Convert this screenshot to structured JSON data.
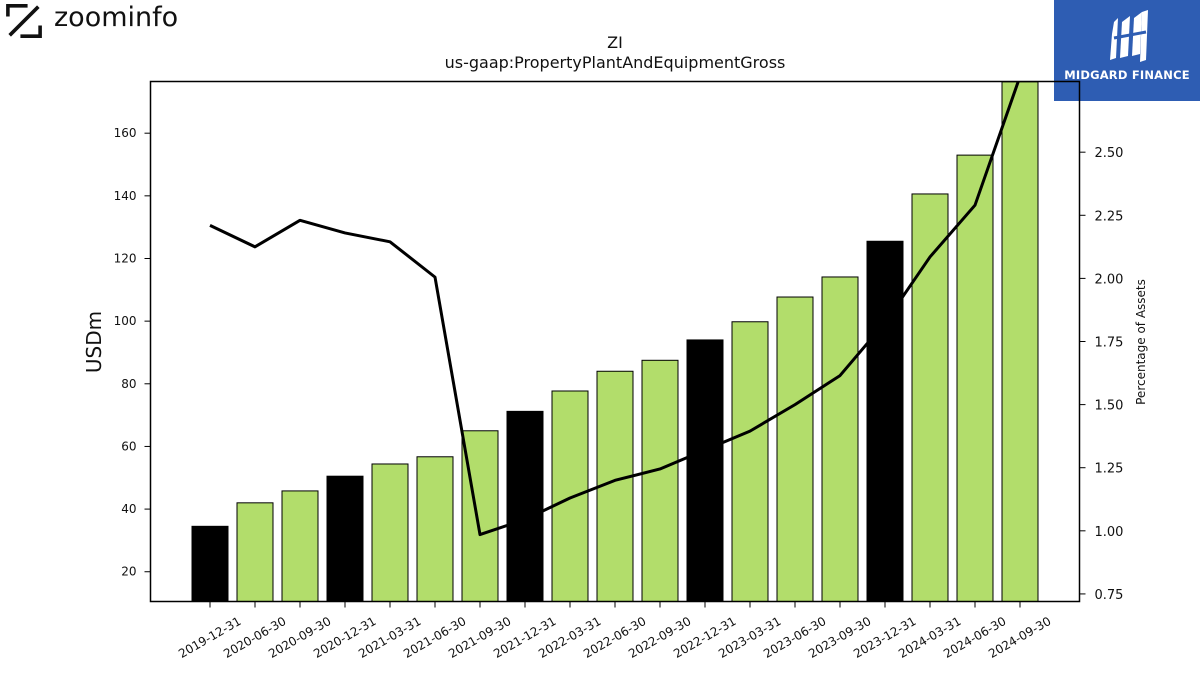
{
  "brand": {
    "name": "zoominfo",
    "logo_icon": "zoominfo-z-icon"
  },
  "badge": {
    "name": "MIDGARD FINANCE",
    "icon": "midgard-logo-icon",
    "color": "#2e5db3"
  },
  "chart_data": {
    "type": "bar",
    "title": "ZI",
    "subtitle": "us-gaap:PropertyPlantAndEquipmentGross",
    "ylabel": "USDm",
    "y2label": "Percentage of Assets",
    "ylim": [
      10.5,
      176.5
    ],
    "y2lim": [
      0.72,
      2.78
    ],
    "yticks": [
      20,
      40,
      60,
      80,
      100,
      120,
      140,
      160
    ],
    "y2ticks": [
      "0.75",
      "1.00",
      "1.25",
      "1.50",
      "1.75",
      "2.00",
      "2.25",
      "2.50"
    ],
    "categories": [
      "2019-12-31",
      "2020-06-30",
      "2020-09-30",
      "2020-12-31",
      "2021-03-31",
      "2021-06-30",
      "2021-09-30",
      "2021-12-31",
      "2022-03-31",
      "2022-06-30",
      "2022-09-30",
      "2022-12-31",
      "2023-03-31",
      "2023-06-30",
      "2023-09-30",
      "2023-12-31",
      "2024-03-31",
      "2024-06-30",
      "2024-09-30"
    ],
    "series": [
      {
        "values": [
          34.5,
          42.0,
          45.8,
          50.5,
          54.4,
          56.7,
          65.0,
          71.2,
          77.7,
          84.0,
          87.5,
          94.0,
          99.8,
          107.7,
          114.1,
          125.5,
          140.6,
          153.0,
          176.4
        ]
      },
      {
        "axis": "right",
        "values": [
          2.21,
          2.125,
          2.23,
          2.18,
          2.145,
          2.005,
          0.985,
          1.045,
          1.13,
          1.2,
          1.245,
          1.32,
          1.395,
          1.5,
          1.615,
          1.825,
          2.085,
          2.29,
          2.8
        ]
      }
    ],
    "bar_colors": [
      "#000000",
      "#b2dd6b",
      "#b2dd6b",
      "#000000",
      "#b2dd6b",
      "#b2dd6b",
      "#b2dd6b",
      "#000000",
      "#b2dd6b",
      "#b2dd6b",
      "#b2dd6b",
      "#000000",
      "#b2dd6b",
      "#b2dd6b",
      "#b2dd6b",
      "#000000",
      "#b2dd6b",
      "#b2dd6b",
      "#b2dd6b"
    ],
    "line_color": "#000000",
    "grid": false
  }
}
